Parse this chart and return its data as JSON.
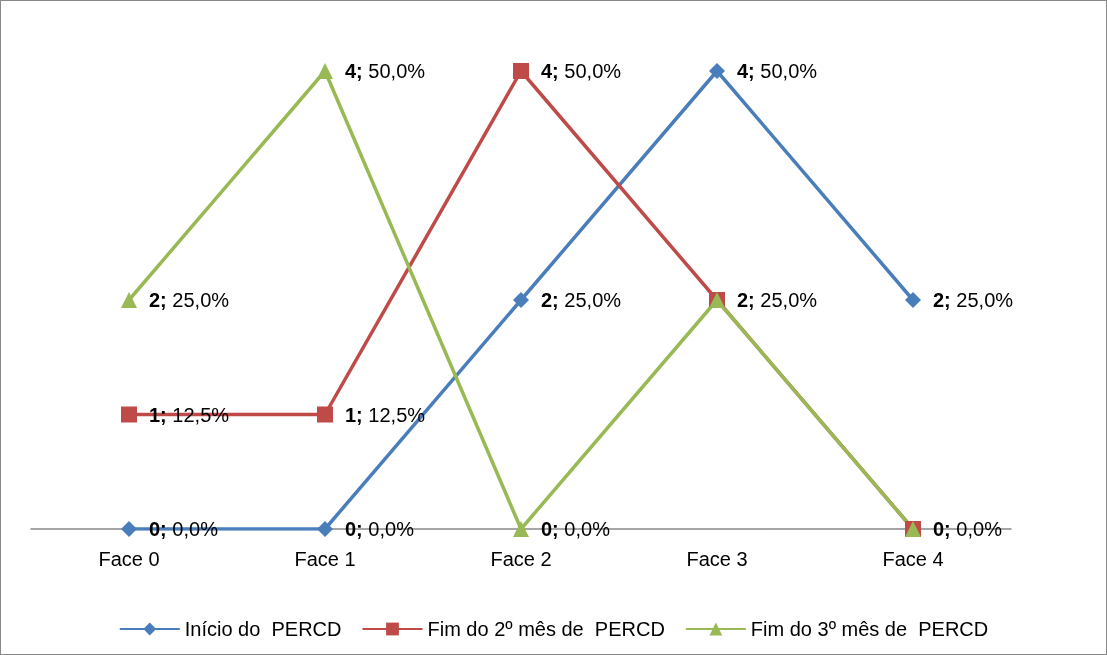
{
  "chart_data": {
    "type": "line",
    "categories": [
      "Face 0",
      "Face 1",
      "Face 2",
      "Face 3",
      "Face 4"
    ],
    "series": [
      {
        "name": "Início do  PERCD",
        "color": "#4a7ebb",
        "marker": "diamond",
        "values": [
          0,
          0,
          2,
          4,
          2
        ],
        "value_labels": [
          "0; 0,0%",
          "0; 0,0%",
          "2; 25,0%",
          "4; 50,0%",
          "2; 25,0%"
        ]
      },
      {
        "name": "Fim do 2º mês de  PERCD",
        "color": "#be4b48",
        "marker": "square",
        "values": [
          1,
          1,
          4,
          2,
          0
        ],
        "value_labels": [
          "1; 12,5%",
          "1; 12,5%",
          "4; 50,0%",
          "2; 25,0%",
          "0; 0,0%"
        ]
      },
      {
        "name": "Fim do 3º mês de  PERCD",
        "color": "#98b954",
        "marker": "triangle",
        "values": [
          2,
          4,
          0,
          2,
          0
        ],
        "value_labels": [
          "2; 25,0%",
          "4; 50,0%",
          "0; 0,0%",
          null,
          null
        ]
      }
    ],
    "grid": false,
    "legend": "bottom",
    "line_style": "solid"
  }
}
